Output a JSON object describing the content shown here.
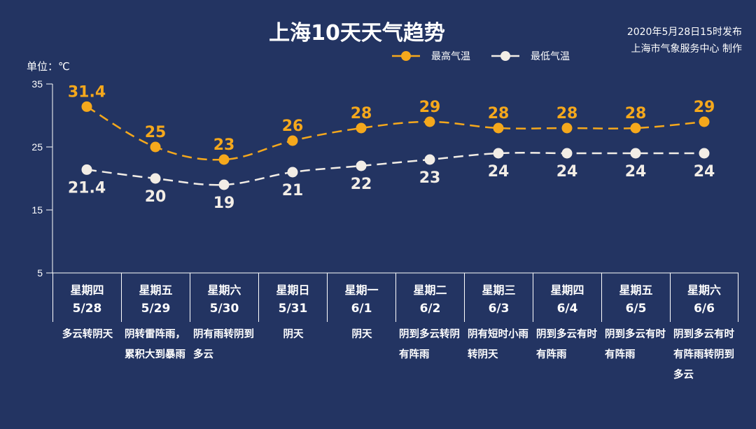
{
  "header": {
    "title": "上海10天天气趋势",
    "publish_time": "2020年5月28日15时发布",
    "producer": "上海市气象服务中心 制作",
    "unit": "单位：℃"
  },
  "legend": [
    {
      "label": "最高气温",
      "color": "#f5a81c"
    },
    {
      "label": "最低气温",
      "color": "#f2ede6"
    }
  ],
  "colors": {
    "background": "#233462",
    "high": "#f5a81c",
    "low": "#f2ede6",
    "axis": "#ffffff"
  },
  "days": [
    {
      "weekday": "星期四",
      "date": "5/28",
      "desc": "多云转阴天"
    },
    {
      "weekday": "星期五",
      "date": "5/29",
      "desc": "阴转雷阵雨，累积大到暴雨"
    },
    {
      "weekday": "星期六",
      "date": "5/30",
      "desc": "阴有雨转阴到多云"
    },
    {
      "weekday": "星期日",
      "date": "5/31",
      "desc": "阴天"
    },
    {
      "weekday": "星期一",
      "date": "6/1",
      "desc": "阴天"
    },
    {
      "weekday": "星期二",
      "date": "6/2",
      "desc": "阴到多云转阴有阵雨"
    },
    {
      "weekday": "星期三",
      "date": "6/3",
      "desc": "阴有短时小雨转阴天"
    },
    {
      "weekday": "星期四",
      "date": "6/4",
      "desc": "阴到多云有时有阵雨"
    },
    {
      "weekday": "星期五",
      "date": "6/5",
      "desc": "阴到多云有时有阵雨"
    },
    {
      "weekday": "星期六",
      "date": "6/6",
      "desc": "阴到多云有时有阵雨转阴到多云"
    }
  ],
  "chart_data": {
    "type": "line",
    "title": "上海10天天气趋势",
    "xlabel": "",
    "ylabel": "单位：℃",
    "categories": [
      "5/28",
      "5/29",
      "5/30",
      "5/31",
      "6/1",
      "6/2",
      "6/3",
      "6/4",
      "6/5",
      "6/6"
    ],
    "series": [
      {
        "name": "最高气温",
        "values": [
          31.4,
          25,
          23,
          26,
          28,
          29,
          28,
          28,
          28,
          29
        ],
        "color": "#f5a81c",
        "style": "dashed"
      },
      {
        "name": "最低气温",
        "values": [
          21.4,
          20,
          19,
          21,
          22,
          23,
          24,
          24,
          24,
          24
        ],
        "color": "#f2ede6",
        "style": "dashed"
      }
    ],
    "yticks": [
      5,
      15,
      25,
      35
    ],
    "ylim": [
      5,
      35
    ],
    "grid": false,
    "legend_position": "top-right"
  }
}
